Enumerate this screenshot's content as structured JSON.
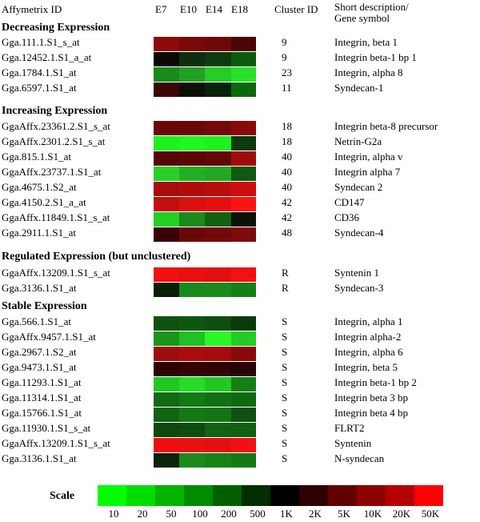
{
  "header": {
    "affy": "Affymetrix ID",
    "stages": [
      "E7",
      "E10",
      "E14",
      "E18"
    ],
    "cluster": "Cluster ID",
    "desc_line1": "Short description/",
    "desc_line2": "Gene symbol"
  },
  "colors": {
    "r": "#ff0000",
    "g": "#00ff00",
    "k": "#000000"
  },
  "chart_data": {
    "type": "heatmap",
    "columns": [
      "E7",
      "E10",
      "E14",
      "E18"
    ],
    "sections": [
      {
        "title": "Decreasing Expression",
        "rows": [
          {
            "id": "Gga.111.1.S1_s_at",
            "cluster": "9",
            "desc": "Integrin, beta 1",
            "cells": [
              "#8c0a0a",
              "#7a0808",
              "#6e0808",
              "#4a0404"
            ]
          },
          {
            "id": "Gga.12452.1.S1_a_at",
            "cluster": "9",
            "desc": "Integrin beta-1 bp 1",
            "cells": [
              "#0a0a00",
              "#0f2d0f",
              "#0e3a0e",
              "#0c5a0c"
            ]
          },
          {
            "id": "Gga.1784.1.S1_at",
            "cluster": "23",
            "desc": "Integrin, alpha 8",
            "cells": [
              "#1a8a1a",
              "#22a022",
              "#26cc26",
              "#2ae02a"
            ]
          },
          {
            "id": "Gga.6597.1.S1_at",
            "cluster": "11",
            "desc": "Syndecan-1",
            "cells": [
              "#3a0606",
              "#0a1208",
              "#06240a",
              "#0a6a0a"
            ]
          }
        ]
      },
      {
        "title": "Increasing Expression",
        "rows": [
          {
            "id": "GgaAffx.23361.2.S1_s_at",
            "cluster": "18",
            "desc": "Integrin beta-8 precursor",
            "cells": [
              "#6a0808",
              "#6a0808",
              "#720808",
              "#8a0a0a"
            ]
          },
          {
            "id": "GgaAffx.2301.2.S1_s_at",
            "cluster": "18",
            "desc": "Netrin-G2a",
            "cells": [
              "#20f020",
              "#20f820",
              "#20f020",
              "#0c3a0c"
            ]
          },
          {
            "id": "Gga.815.1.S1_at",
            "cluster": "40",
            "desc": "Integrin, alpha v",
            "cells": [
              "#560606",
              "#5c0606",
              "#620606",
              "#a00c0c"
            ]
          },
          {
            "id": "GgaAffx.23737.1.S1_at",
            "cluster": "40",
            "desc": "Integrin alpha 7",
            "cells": [
              "#28d028",
              "#22b022",
              "#22a822",
              "#0e5a0e"
            ]
          },
          {
            "id": "Gga.4675.1.S2_at",
            "cluster": "40",
            "desc": "Syndecan 2",
            "cells": [
              "#a80c0c",
              "#b00c0c",
              "#b80e0e",
              "#cc0e0e"
            ]
          },
          {
            "id": "Gga.4150.2.S1_a_at",
            "cluster": "42",
            "desc": "CD147",
            "cells": [
              "#c40e0e",
              "#d81010",
              "#e41010",
              "#ff1212"
            ]
          },
          {
            "id": "GgaAffx.11849.1.S1_s_at",
            "cluster": "42",
            "desc": "CD36",
            "cells": [
              "#24d024",
              "#1a8a1a",
              "#126212",
              "#0a1208"
            ]
          },
          {
            "id": "Gga.2911.1.S1_at",
            "cluster": "48",
            "desc": "Syndecan-4",
            "cells": [
              "#3a0404",
              "#6a0808",
              "#760808",
              "#7e0a0a"
            ]
          }
        ]
      },
      {
        "title": "Regulated Expression (but unclustered)",
        "rows": [
          {
            "id": "GgaAffx.13209.1.S1_s_at",
            "cluster": "R",
            "desc": "Syntenin 1",
            "cells": [
              "#f01010",
              "#e81010",
              "#e01010",
              "#f01212"
            ]
          },
          {
            "id": "Gga.3136.1.S1_at",
            "cluster": "R",
            "desc": "Syndecan-3",
            "cells": [
              "#0a1e08",
              "#1a8a1a",
              "#1a8a1a",
              "#168016"
            ]
          }
        ]
      },
      {
        "title": "Stable Expression",
        "rows": [
          {
            "id": "Gga.566.1.S1_at",
            "cluster": "S",
            "desc": "Integrin, alpha 1",
            "cells": [
              "#0e520e",
              "#0e560e",
              "#0e4e0e",
              "#0a3a0a"
            ]
          },
          {
            "id": "GgaAffx.9457.1.S1_at",
            "cluster": "S",
            "desc": "Integrin alpha-2",
            "cells": [
              "#1a961a",
              "#22c022",
              "#2af82a",
              "#24cc24"
            ]
          },
          {
            "id": "Gga.2967.1.S2_at",
            "cluster": "S",
            "desc": "Integrin, alpha 6",
            "cells": [
              "#a00c0c",
              "#a80c0c",
              "#a40c0c",
              "#8a0a0a"
            ]
          },
          {
            "id": "Gga.9473.1.S1_at",
            "cluster": "S",
            "desc": "Integrin, beta 5",
            "cells": [
              "#2c0404",
              "#320404",
              "#300404",
              "#280404"
            ]
          },
          {
            "id": "Gga.11293.1.S1_at",
            "cluster": "S",
            "desc": "Integrin beta-1 bp 2",
            "cells": [
              "#22c822",
              "#26dc26",
              "#22c822",
              "#148014"
            ]
          },
          {
            "id": "Gga.11314.1.S1_at",
            "cluster": "S",
            "desc": "Integrin beta 3 bp",
            "cells": [
              "#126a12",
              "#147814",
              "#127012",
              "#0e6a0e"
            ]
          },
          {
            "id": "Gga.15766.1.S1_at",
            "cluster": "S",
            "desc": "Integrin beta 4 bp",
            "cells": [
              "#126212",
              "#147814",
              "#147414",
              "#0e500e"
            ]
          },
          {
            "id": "Gga.11930.1.S1_s_at",
            "cluster": "S",
            "desc": "FLRT2",
            "cells": [
              "#0e480e",
              "#0e4c0e",
              "#126212",
              "#126012"
            ]
          },
          {
            "id": "GgaAffx.13209.1.S1_s_at",
            "cluster": "S",
            "desc": "Syntenin",
            "cells": [
              "#ee1010",
              "#e81010",
              "#e41010",
              "#f01212"
            ]
          },
          {
            "id": "Gga.3136.1.S1_at",
            "cluster": "S",
            "desc": "N-syndecan",
            "cells": [
              "#0a2408",
              "#1a8a1a",
              "#168216",
              "#147a14"
            ]
          }
        ]
      }
    ],
    "scale": {
      "title": "Scale",
      "labels": [
        "10",
        "20",
        "50",
        "100",
        "200",
        "500",
        "1K",
        "2K",
        "5K",
        "10K",
        "20K",
        "50K"
      ],
      "colors": [
        "#00ff00",
        "#00dd00",
        "#00b400",
        "#008c00",
        "#006000",
        "#002e00",
        "#000000",
        "#2e0000",
        "#600000",
        "#8c0000",
        "#b40000",
        "#ff0000"
      ]
    }
  }
}
